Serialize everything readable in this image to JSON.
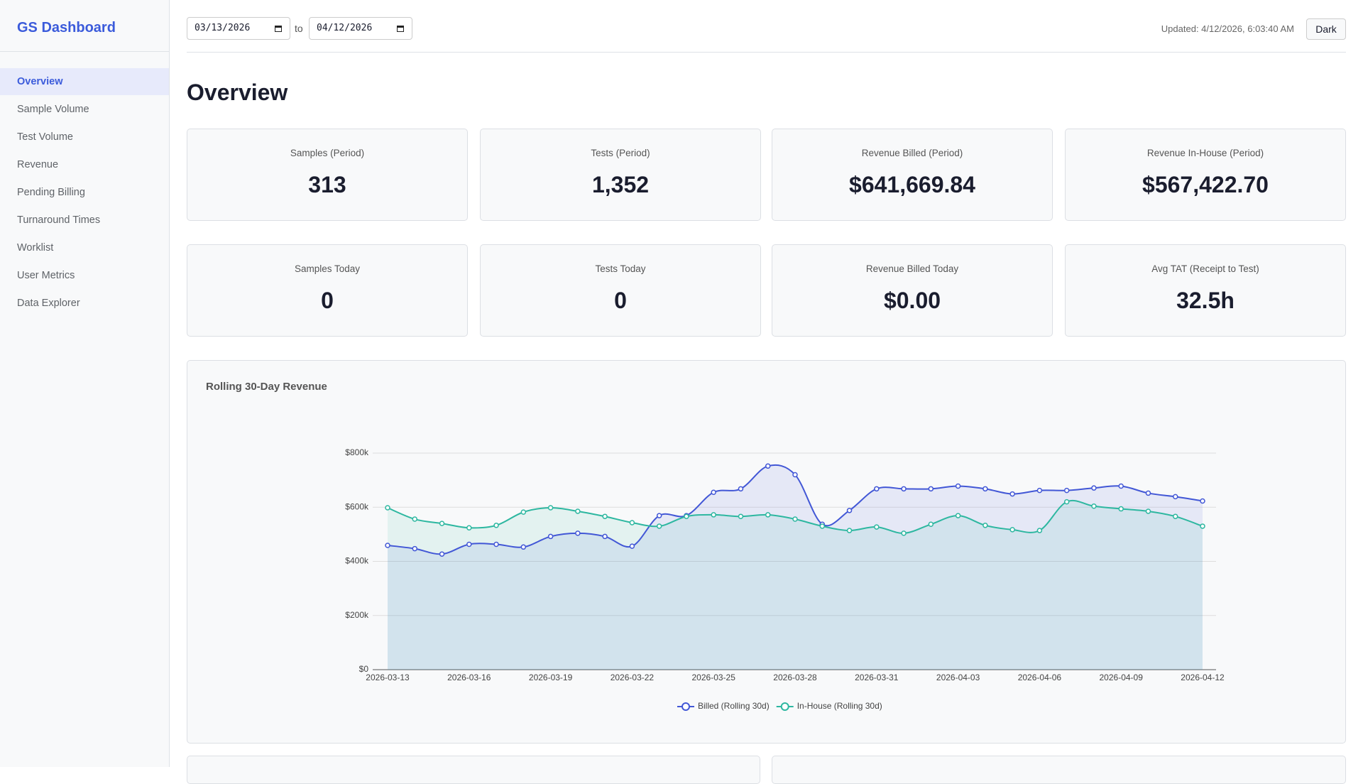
{
  "sidebar": {
    "title": "GS Dashboard",
    "nav": [
      "Overview",
      "Sample Volume",
      "Test Volume",
      "Revenue",
      "Pending Billing",
      "Turnaround Times",
      "Worklist",
      "User Metrics",
      "Data Explorer"
    ]
  },
  "topbar": {
    "start_date": "03/13/2026",
    "between": "to",
    "end_date": "04/12/2026",
    "updated": "Updated: 4/12/2026, 6:03:40 AM",
    "theme_button": "Dark"
  },
  "heading": "Overview",
  "cards": [
    {
      "label": "Samples (Period)",
      "value": "313"
    },
    {
      "label": "Tests (Period)",
      "value": "1,352"
    },
    {
      "label": "Revenue Billed (Period)",
      "value": "$641,669.84"
    },
    {
      "label": "Revenue In-House (Period)",
      "value": "$567,422.70"
    },
    {
      "label": "Samples Today",
      "value": "0"
    },
    {
      "label": "Tests Today",
      "value": "0"
    },
    {
      "label": "Revenue Billed Today",
      "value": "$0.00"
    },
    {
      "label": "Avg TAT (Receipt to Test)",
      "value": "32.5h"
    }
  ],
  "chart_data": {
    "type": "line",
    "title": "Rolling 30-Day Revenue",
    "x": [
      "2026-03-13",
      null,
      null,
      "2026-03-16",
      null,
      null,
      "2026-03-19",
      null,
      null,
      "2026-03-22",
      null,
      null,
      "2026-03-25",
      null,
      null,
      "2026-03-28",
      null,
      null,
      "2026-03-31",
      null,
      null,
      "2026-04-03",
      null,
      null,
      "2026-04-06",
      null,
      null,
      "2026-04-09",
      null,
      null,
      "2026-04-12"
    ],
    "series": [
      {
        "name": "Billed (Rolling 30d)",
        "color": "#4257d6",
        "values": [
          459000,
          447000,
          427000,
          463000,
          463000,
          453000,
          492000,
          504000,
          492000,
          456000,
          569000,
          569000,
          655000,
          668000,
          752000,
          720000,
          537000,
          588000,
          668000,
          668000,
          668000,
          678000,
          668000,
          649000,
          662000,
          662000,
          671000,
          678000,
          652000,
          639000,
          623000
        ]
      },
      {
        "name": "In-House (Rolling 30d)",
        "color": "#2db7a0",
        "values": [
          598000,
          556000,
          540000,
          524000,
          533000,
          582000,
          598000,
          585000,
          566000,
          543000,
          530000,
          566000,
          572000,
          566000,
          572000,
          556000,
          530000,
          514000,
          527000,
          504000,
          537000,
          569000,
          533000,
          517000,
          514000,
          620000,
          604000,
          594000,
          585000,
          566000,
          530000
        ]
      }
    ],
    "ylim": [
      0,
      800000
    ],
    "yticks": [
      {
        "value": 0,
        "label": "$0"
      },
      {
        "value": 200000,
        "label": "$200k"
      },
      {
        "value": 400000,
        "label": "$400k"
      },
      {
        "value": 600000,
        "label": "$600k"
      },
      {
        "value": 800000,
        "label": "$800k"
      }
    ],
    "grid": true,
    "legend": "bottom"
  }
}
